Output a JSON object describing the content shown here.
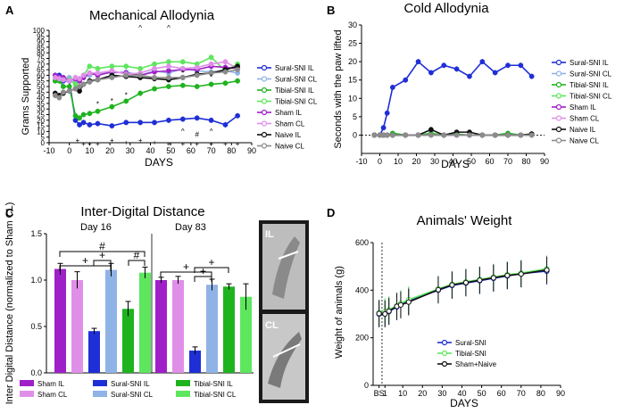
{
  "colors": {
    "sural_il": "#1f2fd6",
    "sural_cl": "#8fb3e6",
    "tibial_il": "#1fb31f",
    "tibial_cl": "#5ee65e",
    "sham_il": "#a020c8",
    "sham_cl": "#e08fe8",
    "naive_il": "#111111",
    "naive_cl": "#8c8c8c"
  },
  "chart_data": [
    {
      "panel": "A",
      "type": "line",
      "title": "Mechanical Allodynia",
      "xlabel": "DAYS",
      "ylabel": "Grams Supported",
      "xlim": [
        -10,
        90
      ],
      "ylim": [
        0,
        100
      ],
      "xticks": [
        -10,
        0,
        10,
        20,
        30,
        40,
        50,
        60,
        70,
        80,
        90
      ],
      "yticks": [
        0,
        5,
        10,
        15,
        20,
        25,
        30,
        35,
        40,
        45,
        50,
        55,
        60,
        65,
        70,
        75,
        80,
        85,
        90,
        95,
        100
      ],
      "x": [
        -7,
        -5,
        -3,
        0,
        3,
        5,
        7,
        10,
        14,
        21,
        28,
        35,
        42,
        49,
        56,
        63,
        70,
        77,
        83
      ],
      "series": [
        {
          "name": "Sural-SNI IL",
          "color_key": "sural_il",
          "values": [
            60,
            60,
            55,
            55,
            20,
            16,
            18,
            16,
            17,
            15,
            18,
            18,
            18,
            20,
            21,
            22,
            20,
            16,
            24
          ]
        },
        {
          "name": "Sural-SNI CL",
          "color_key": "sural_cl",
          "values": [
            58,
            58,
            58,
            58,
            55,
            55,
            58,
            60,
            62,
            62,
            63,
            60,
            64,
            62,
            66,
            64,
            63,
            64,
            62
          ]
        },
        {
          "name": "Tibial-SNI IL",
          "color_key": "tibial_il",
          "values": [
            55,
            55,
            50,
            50,
            24,
            22,
            25,
            26,
            28,
            32,
            37,
            44,
            48,
            50,
            51,
            50,
            52,
            53,
            55
          ]
        },
        {
          "name": "Tibial-SNI CL",
          "color_key": "tibial_cl",
          "values": [
            60,
            58,
            57,
            56,
            52,
            55,
            60,
            68,
            66,
            68,
            68,
            66,
            70,
            72,
            72,
            70,
            76,
            64,
            70
          ]
        },
        {
          "name": "Sham IL",
          "color_key": "sham_il",
          "values": [
            60,
            58,
            58,
            55,
            57,
            55,
            58,
            62,
            60,
            63,
            62,
            60,
            63,
            64,
            65,
            65,
            68,
            67,
            66
          ]
        },
        {
          "name": "Sham CL",
          "color_key": "sham_cl",
          "values": [
            58,
            57,
            56,
            55,
            58,
            57,
            60,
            62,
            62,
            64,
            61,
            62,
            66,
            68,
            66,
            67,
            70,
            72,
            66
          ]
        },
        {
          "name": "Naive IL",
          "color_key": "naive_il",
          "values": [
            44,
            42,
            44,
            46,
            48,
            46,
            52,
            55,
            56,
            60,
            59,
            58,
            57,
            56,
            58,
            61,
            62,
            65,
            68
          ]
        },
        {
          "name": "Naive CL",
          "color_key": "naive_cl",
          "values": [
            42,
            40,
            45,
            46,
            48,
            50,
            52,
            54,
            56,
            58,
            60,
            60,
            58,
            58,
            58,
            60,
            62,
            63,
            65
          ]
        }
      ],
      "annotations": [
        "+",
        "+",
        "+",
        "+",
        "+",
        "+",
        "+",
        "+",
        "+",
        "+",
        "+",
        "+",
        "+",
        "+",
        "#",
        "*",
        "*",
        "*",
        "*",
        "*",
        "^",
        "^",
        "^",
        "^"
      ]
    },
    {
      "panel": "B",
      "type": "line",
      "title": "Cold Allodynia",
      "xlabel": "DAYS",
      "ylabel": "Seconds with the paw lifted",
      "xlim": [
        -10,
        90
      ],
      "ylim": [
        -5,
        30
      ],
      "xticks": [
        -10,
        0,
        10,
        20,
        30,
        40,
        50,
        60,
        70,
        80,
        90
      ],
      "yticks": [
        0,
        5,
        10,
        15,
        20,
        25,
        30
      ],
      "x": [
        -3,
        0,
        2,
        4,
        7,
        14,
        21,
        28,
        35,
        42,
        49,
        56,
        63,
        70,
        77,
        83
      ],
      "series": [
        {
          "name": "Sural-SNI IL",
          "color_key": "sural_il",
          "values": [
            0,
            0,
            2,
            6,
            13,
            15,
            20,
            17,
            19,
            18,
            16,
            20,
            17,
            19,
            19,
            16
          ]
        },
        {
          "name": "Sural-SNI CL",
          "color_key": "sural_cl",
          "values": [
            0,
            0,
            0,
            0,
            0,
            0,
            0,
            0,
            0,
            0,
            0,
            0,
            0,
            0,
            0,
            0
          ]
        },
        {
          "name": "Tibial-SNI IL",
          "color_key": "tibial_il",
          "values": [
            0,
            0,
            0,
            0,
            0.5,
            0,
            0,
            0.5,
            0,
            0.3,
            0,
            0,
            0,
            0.5,
            0,
            0.3
          ]
        },
        {
          "name": "Tibial-SNI CL",
          "color_key": "tibial_cl",
          "values": [
            0,
            0,
            0,
            0,
            0,
            0,
            0,
            0,
            0,
            0,
            0,
            0,
            0,
            0,
            0,
            0
          ]
        },
        {
          "name": "Sham IL",
          "color_key": "sham_il",
          "values": [
            0,
            0,
            0,
            0,
            0,
            0,
            0,
            0,
            0,
            0,
            0,
            0,
            0,
            0,
            0,
            0
          ]
        },
        {
          "name": "Sham CL",
          "color_key": "sham_cl",
          "values": [
            0,
            0,
            0,
            0,
            0,
            0,
            0,
            0,
            0,
            0,
            0,
            0,
            0,
            0,
            0,
            0
          ]
        },
        {
          "name": "Naive IL",
          "color_key": "naive_il",
          "values": [
            0,
            0,
            0,
            0,
            0,
            0,
            0,
            1.5,
            0,
            0.8,
            0.8,
            0,
            0,
            0,
            0,
            0.3
          ]
        },
        {
          "name": "Naive CL",
          "color_key": "naive_cl",
          "values": [
            0,
            0,
            0,
            0,
            0,
            0,
            0,
            0,
            0,
            0,
            0,
            0,
            0,
            0,
            0,
            0
          ]
        }
      ]
    },
    {
      "panel": "C",
      "type": "bar",
      "title": "Inter-Digital Distance",
      "ylabel": "Inter Digital Distance (normalized to Sham CL)",
      "ylim": [
        0,
        1.5
      ],
      "yticks": [
        "0.0",
        "0.5",
        "1.0",
        "1.5"
      ],
      "groups": [
        "Day 16",
        "Day 83"
      ],
      "categories": [
        "Sham IL",
        "Sham CL",
        "Sural-SNI IL",
        "Sural-SNI CL",
        "Tibial-SNI IL",
        "Tibial-SNI CL"
      ],
      "series": [
        {
          "name": "Day 16",
          "values": [
            1.12,
            1.0,
            0.45,
            1.11,
            0.69,
            1.08
          ],
          "errors": [
            0.06,
            0.09,
            0.03,
            0.07,
            0.08,
            0.06
          ]
        },
        {
          "name": "Day 83",
          "values": [
            1.0,
            1.0,
            0.24,
            0.95,
            0.93,
            0.82
          ],
          "errors": [
            0.03,
            0.04,
            0.04,
            0.06,
            0.03,
            0.14
          ]
        }
      ],
      "legend": [
        "Sham IL",
        "Sham CL",
        "Sural-SNI IL",
        "Sural-SNI CL",
        "Tibial-SNI IL",
        "Tibial-SNI CL"
      ],
      "sig_marks": [
        "+",
        "+",
        "#",
        "#",
        "+",
        "+",
        "+"
      ],
      "photo_labels": [
        "IL",
        "CL"
      ]
    },
    {
      "panel": "D",
      "type": "line",
      "title": "Animals' Weight",
      "xlabel": "DAYS",
      "ylabel": "Weight of animals (g)",
      "xlim": [
        -5,
        90
      ],
      "ylim": [
        0,
        600
      ],
      "xticks": [
        "BS",
        "1",
        "10",
        "20",
        "30",
        "40",
        "50",
        "60",
        "70",
        "80",
        "90"
      ],
      "yticks": [
        0,
        200,
        400,
        600
      ],
      "x": [
        -2,
        1,
        3,
        7,
        9,
        13,
        28,
        35,
        42,
        49,
        56,
        63,
        70,
        83
      ],
      "series": [
        {
          "name": "Sural-SNI",
          "color_key": "sural_il",
          "values": [
            300,
            305,
            310,
            330,
            340,
            355,
            400,
            420,
            430,
            440,
            450,
            460,
            470,
            480
          ]
        },
        {
          "name": "Tibial-SNI",
          "color_key": "tibial_cl",
          "values": [
            305,
            310,
            318,
            335,
            345,
            360,
            405,
            425,
            435,
            445,
            455,
            465,
            472,
            490
          ]
        },
        {
          "name": "Sham+Naive",
          "color_key": "naive_il",
          "values": [
            302,
            300,
            312,
            332,
            338,
            350,
            402,
            422,
            432,
            442,
            452,
            462,
            468,
            485
          ]
        }
      ]
    }
  ],
  "panel_labels": [
    "A",
    "B",
    "C",
    "D"
  ]
}
